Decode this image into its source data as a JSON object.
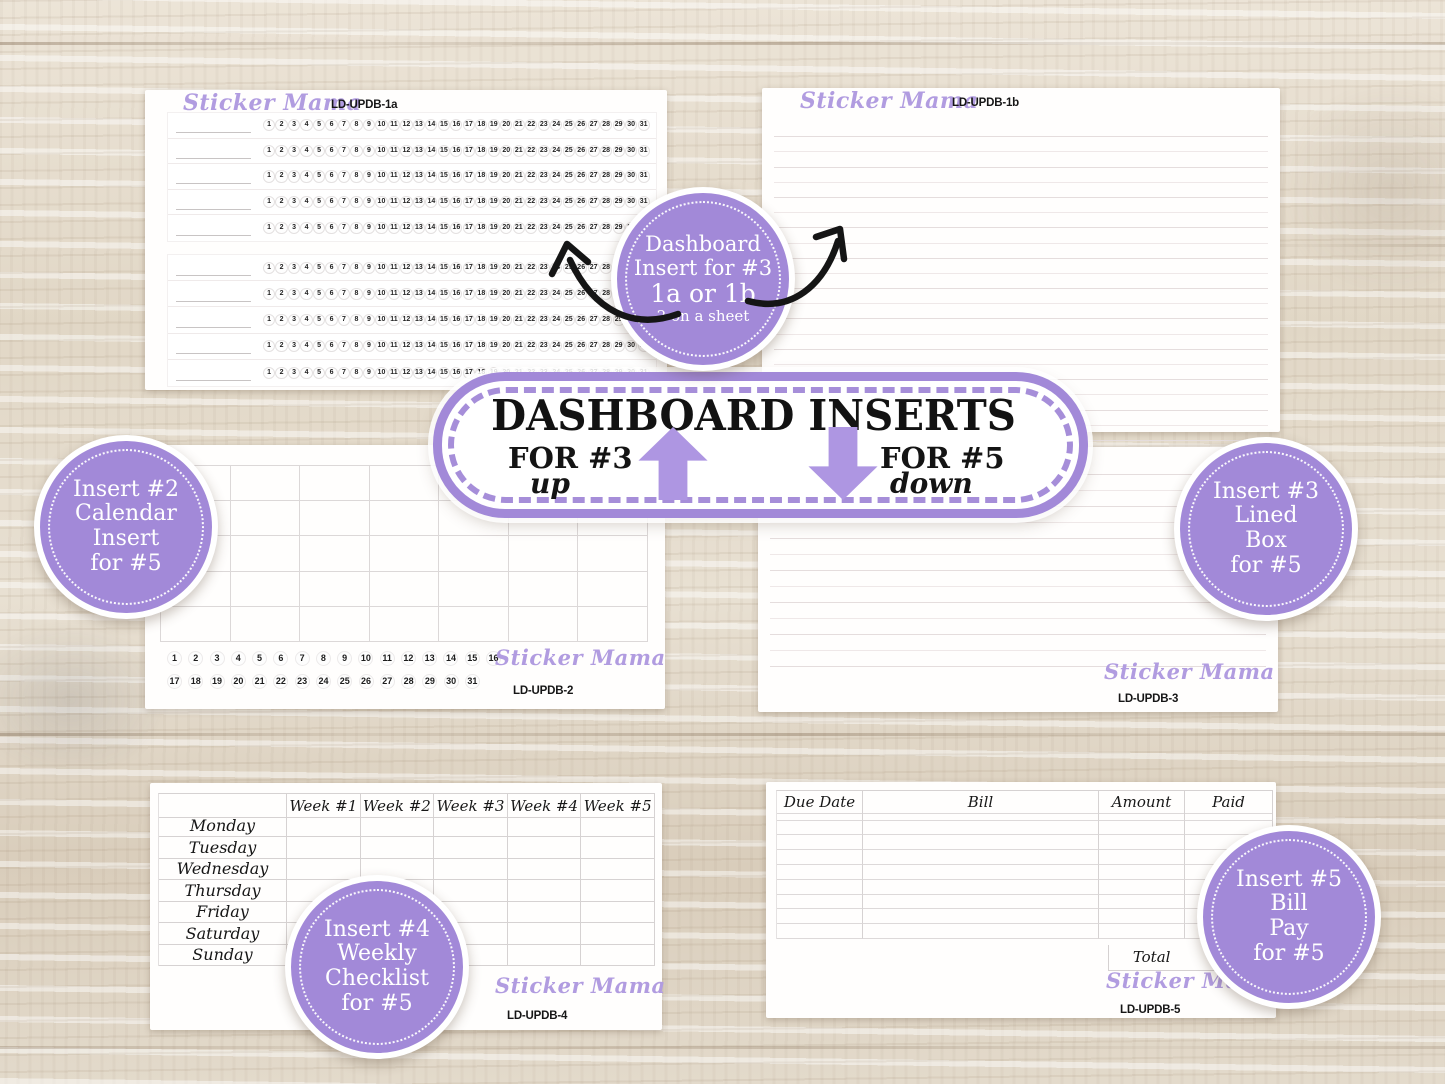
{
  "brand": "Sticker Mama",
  "colors": {
    "badge_purple": "#a289d8",
    "arrow_purple": "#ae96e2",
    "script_purple": "#b19ce0",
    "ink": "#1a1a1a"
  },
  "banner": {
    "title": "DASHBOARD INSERTS",
    "left_label": "FOR #3",
    "left_sub": "up",
    "right_label": "FOR #5",
    "right_sub": "down"
  },
  "badges": {
    "dashboard": {
      "lines": [
        "Dashboard",
        "Insert for #3",
        "1a or 1b",
        "2 on a sheet"
      ]
    },
    "insert2": {
      "lines": [
        "Insert #2",
        "Calendar",
        "Insert",
        "for #5"
      ]
    },
    "insert3": {
      "lines": [
        "Insert #3",
        "Lined",
        "Box",
        "for #5"
      ]
    },
    "insert4": {
      "lines": [
        "Insert #4",
        "Weekly",
        "Checklist",
        "for #5"
      ]
    },
    "insert5": {
      "lines": [
        "Insert #5",
        "Bill",
        "Pay",
        "for #5"
      ]
    }
  },
  "cards": {
    "card_1a": {
      "brand": "Sticker Mama",
      "code": "LD-UPDB-1a",
      "sections": 2,
      "rows_per_section": 5,
      "days": [
        1,
        2,
        3,
        4,
        5,
        6,
        7,
        8,
        9,
        10,
        11,
        12,
        13,
        14,
        15,
        16,
        17,
        18,
        19,
        20,
        21,
        22,
        23,
        24,
        25,
        26,
        27,
        28,
        29,
        30,
        31
      ]
    },
    "card_1b": {
      "brand": "Sticker Mama",
      "code": "LD-UPDB-1b",
      "rule_count": 21
    },
    "card_2": {
      "brand": "Sticker Mama",
      "code": "LD-UPDB-2",
      "grid_cols": 7,
      "grid_rows": 5,
      "numbers_row1": [
        1,
        2,
        3,
        4,
        5,
        6,
        7,
        8,
        9,
        10,
        11,
        12,
        13,
        14,
        15,
        16
      ],
      "numbers_row2": [
        17,
        18,
        19,
        20,
        21,
        22,
        23,
        24,
        25,
        26,
        27,
        28,
        29,
        30,
        31
      ]
    },
    "card_3": {
      "brand": "Sticker Mama",
      "code": "LD-UPDB-3",
      "rule_count": 13
    },
    "card_4": {
      "brand": "Sticker Mama",
      "code": "LD-UPDB-4",
      "week_columns": [
        "Week #1",
        "Week #2",
        "Week #3",
        "Week #4",
        "Week #5"
      ],
      "day_rows": [
        "Monday",
        "Tuesday",
        "Wednesday",
        "Thursday",
        "Friday",
        "Saturday",
        "Sunday"
      ]
    },
    "card_5": {
      "brand": "Sticker Mama",
      "code": "LD-UPDB-5",
      "columns": [
        "Due Date",
        "Bill",
        "Amount",
        "Paid"
      ],
      "empty_rows": 9,
      "total_label": "Total"
    }
  }
}
